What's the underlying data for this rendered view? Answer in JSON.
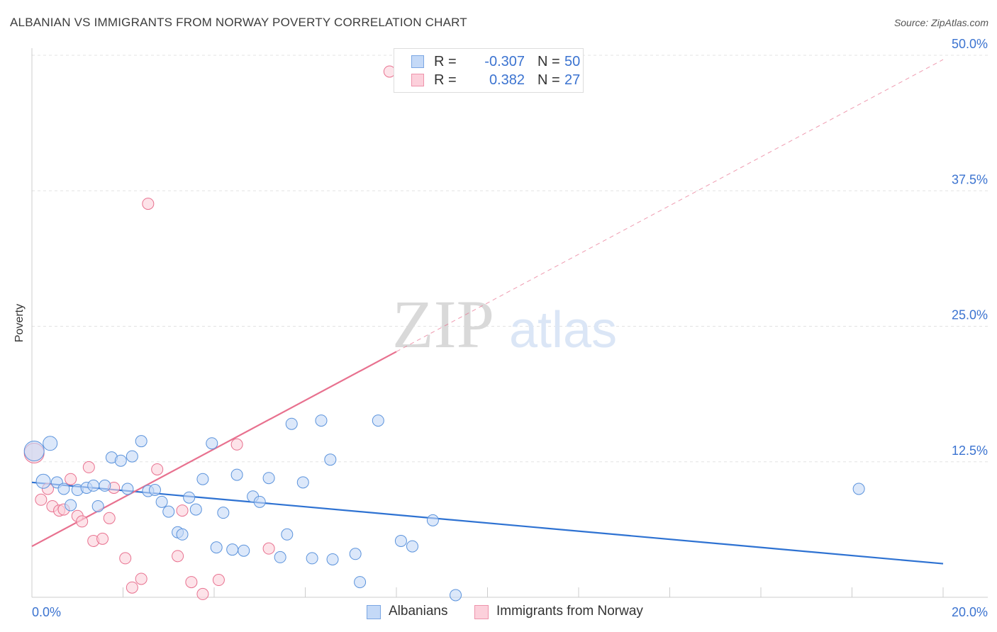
{
  "title": "ALBANIAN VS IMMIGRANTS FROM NORWAY POVERTY CORRELATION CHART",
  "source": "Source: ZipAtlas.com",
  "watermark": {
    "part1": "ZIP",
    "part2": "atlas"
  },
  "legend": {
    "r_label": "R =",
    "n_label": "N =",
    "rows": [
      {
        "r": "-0.307",
        "n": "50"
      },
      {
        "r": "0.382",
        "n": "27"
      }
    ]
  },
  "colors": {
    "albanians": "#5b93dc",
    "albanians_fill": "#c4d9f7",
    "norway": "#e8718f",
    "norway_fill": "#fcd0db",
    "trend_blue": "#2e72d2",
    "trend_pink": "#e8718f",
    "tick_label": "#3b73d0",
    "grid": "#e3e3e3"
  },
  "chart_data": {
    "type": "scatter",
    "title": "ALBANIAN VS IMMIGRANTS FROM NORWAY POVERTY CORRELATION CHART",
    "xlabel": "",
    "ylabel": "Poverty",
    "xlim": [
      0,
      20
    ],
    "ylim": [
      0,
      50
    ],
    "x_tick_labels": [
      {
        "value": 0,
        "label": "0.0%"
      },
      {
        "value": 20,
        "label": "20.0%"
      }
    ],
    "x_minor_ticks": [
      2,
      4,
      6,
      8,
      10,
      12,
      14,
      16,
      18,
      20
    ],
    "y_ticks": [
      {
        "value": 12.5,
        "label": "12.5%"
      },
      {
        "value": 25.0,
        "label": "25.0%"
      },
      {
        "value": 37.5,
        "label": "37.5%"
      },
      {
        "value": 50.0,
        "label": "50.0%"
      }
    ],
    "series": [
      {
        "name": "Albanians",
        "r": -0.307,
        "n": 50,
        "trend": {
          "x_start": 0.0,
          "y_start": 10.6,
          "x_end": 20.0,
          "y_end": 3.1,
          "dashed_from_x": null
        },
        "points": [
          {
            "x": 0.05,
            "y": 13.5,
            "s": 14
          },
          {
            "x": 0.4,
            "y": 14.2,
            "s": 10
          },
          {
            "x": 0.25,
            "y": 10.7,
            "s": 10
          },
          {
            "x": 0.55,
            "y": 10.6,
            "s": 8
          },
          {
            "x": 0.7,
            "y": 10.0,
            "s": 8
          },
          {
            "x": 0.85,
            "y": 8.5,
            "s": 8
          },
          {
            "x": 1.0,
            "y": 9.9,
            "s": 8
          },
          {
            "x": 1.2,
            "y": 10.1,
            "s": 8
          },
          {
            "x": 1.35,
            "y": 10.3,
            "s": 8
          },
          {
            "x": 1.45,
            "y": 8.4,
            "s": 8
          },
          {
            "x": 1.6,
            "y": 10.3,
            "s": 8
          },
          {
            "x": 1.75,
            "y": 12.9,
            "s": 8
          },
          {
            "x": 1.95,
            "y": 12.6,
            "s": 8
          },
          {
            "x": 2.1,
            "y": 10.0,
            "s": 8
          },
          {
            "x": 2.2,
            "y": 13.0,
            "s": 8
          },
          {
            "x": 2.4,
            "y": 14.4,
            "s": 8
          },
          {
            "x": 2.55,
            "y": 9.8,
            "s": 8
          },
          {
            "x": 2.7,
            "y": 9.9,
            "s": 8
          },
          {
            "x": 2.85,
            "y": 8.8,
            "s": 8
          },
          {
            "x": 3.0,
            "y": 7.9,
            "s": 8
          },
          {
            "x": 3.2,
            "y": 6.0,
            "s": 8
          },
          {
            "x": 3.3,
            "y": 5.8,
            "s": 8
          },
          {
            "x": 3.45,
            "y": 9.2,
            "s": 8
          },
          {
            "x": 3.6,
            "y": 8.1,
            "s": 8
          },
          {
            "x": 3.75,
            "y": 10.9,
            "s": 8
          },
          {
            "x": 3.95,
            "y": 14.2,
            "s": 8
          },
          {
            "x": 4.05,
            "y": 4.6,
            "s": 8
          },
          {
            "x": 4.2,
            "y": 7.8,
            "s": 8
          },
          {
            "x": 4.4,
            "y": 4.4,
            "s": 8
          },
          {
            "x": 4.5,
            "y": 11.3,
            "s": 8
          },
          {
            "x": 4.65,
            "y": 4.3,
            "s": 8
          },
          {
            "x": 4.85,
            "y": 9.3,
            "s": 8
          },
          {
            "x": 5.0,
            "y": 8.8,
            "s": 8
          },
          {
            "x": 5.2,
            "y": 11.0,
            "s": 8
          },
          {
            "x": 5.45,
            "y": 3.7,
            "s": 8
          },
          {
            "x": 5.6,
            "y": 5.8,
            "s": 8
          },
          {
            "x": 5.7,
            "y": 16.0,
            "s": 8
          },
          {
            "x": 5.95,
            "y": 10.6,
            "s": 8
          },
          {
            "x": 6.15,
            "y": 3.6,
            "s": 8
          },
          {
            "x": 6.35,
            "y": 16.3,
            "s": 8
          },
          {
            "x": 6.55,
            "y": 12.7,
            "s": 8
          },
          {
            "x": 6.6,
            "y": 3.5,
            "s": 8
          },
          {
            "x": 7.1,
            "y": 4.0,
            "s": 8
          },
          {
            "x": 7.2,
            "y": 1.4,
            "s": 8
          },
          {
            "x": 7.6,
            "y": 16.3,
            "s": 8
          },
          {
            "x": 8.1,
            "y": 5.2,
            "s": 8
          },
          {
            "x": 8.35,
            "y": 4.7,
            "s": 8
          },
          {
            "x": 8.8,
            "y": 7.1,
            "s": 8
          },
          {
            "x": 9.3,
            "y": 0.2,
            "s": 8
          },
          {
            "x": 18.15,
            "y": 10.0,
            "s": 8
          }
        ]
      },
      {
        "name": "Immigrants from Norway",
        "r": 0.382,
        "n": 27,
        "trend": {
          "x_start": 0.0,
          "y_start": 4.7,
          "x_end": 20.0,
          "y_end": 49.6,
          "dashed_from_x": 8.0
        },
        "points": [
          {
            "x": 0.05,
            "y": 13.3,
            "s": 14
          },
          {
            "x": 0.2,
            "y": 9.0,
            "s": 8
          },
          {
            "x": 0.35,
            "y": 10.0,
            "s": 8
          },
          {
            "x": 0.45,
            "y": 8.4,
            "s": 8
          },
          {
            "x": 0.6,
            "y": 8.0,
            "s": 8
          },
          {
            "x": 0.7,
            "y": 8.1,
            "s": 8
          },
          {
            "x": 0.85,
            "y": 10.9,
            "s": 8
          },
          {
            "x": 1.0,
            "y": 7.5,
            "s": 8
          },
          {
            "x": 1.1,
            "y": 7.0,
            "s": 8
          },
          {
            "x": 1.25,
            "y": 12.0,
            "s": 8
          },
          {
            "x": 1.35,
            "y": 5.2,
            "s": 8
          },
          {
            "x": 1.55,
            "y": 5.4,
            "s": 8
          },
          {
            "x": 1.7,
            "y": 7.3,
            "s": 8
          },
          {
            "x": 1.8,
            "y": 10.1,
            "s": 8
          },
          {
            "x": 2.05,
            "y": 3.6,
            "s": 8
          },
          {
            "x": 2.2,
            "y": 0.9,
            "s": 8
          },
          {
            "x": 2.4,
            "y": 1.7,
            "s": 8
          },
          {
            "x": 2.55,
            "y": 36.3,
            "s": 8
          },
          {
            "x": 2.75,
            "y": 11.8,
            "s": 8
          },
          {
            "x": 3.2,
            "y": 3.8,
            "s": 8
          },
          {
            "x": 3.3,
            "y": 8.0,
            "s": 8
          },
          {
            "x": 3.5,
            "y": 1.4,
            "s": 8
          },
          {
            "x": 3.75,
            "y": 0.3,
            "s": 8
          },
          {
            "x": 4.1,
            "y": 1.6,
            "s": 8
          },
          {
            "x": 4.5,
            "y": 14.1,
            "s": 8
          },
          {
            "x": 5.2,
            "y": 4.5,
            "s": 8
          },
          {
            "x": 7.85,
            "y": 48.5,
            "s": 8
          }
        ]
      }
    ]
  },
  "bottom_legend": [
    {
      "label": "Albanians"
    },
    {
      "label": "Immigrants from Norway"
    }
  ]
}
